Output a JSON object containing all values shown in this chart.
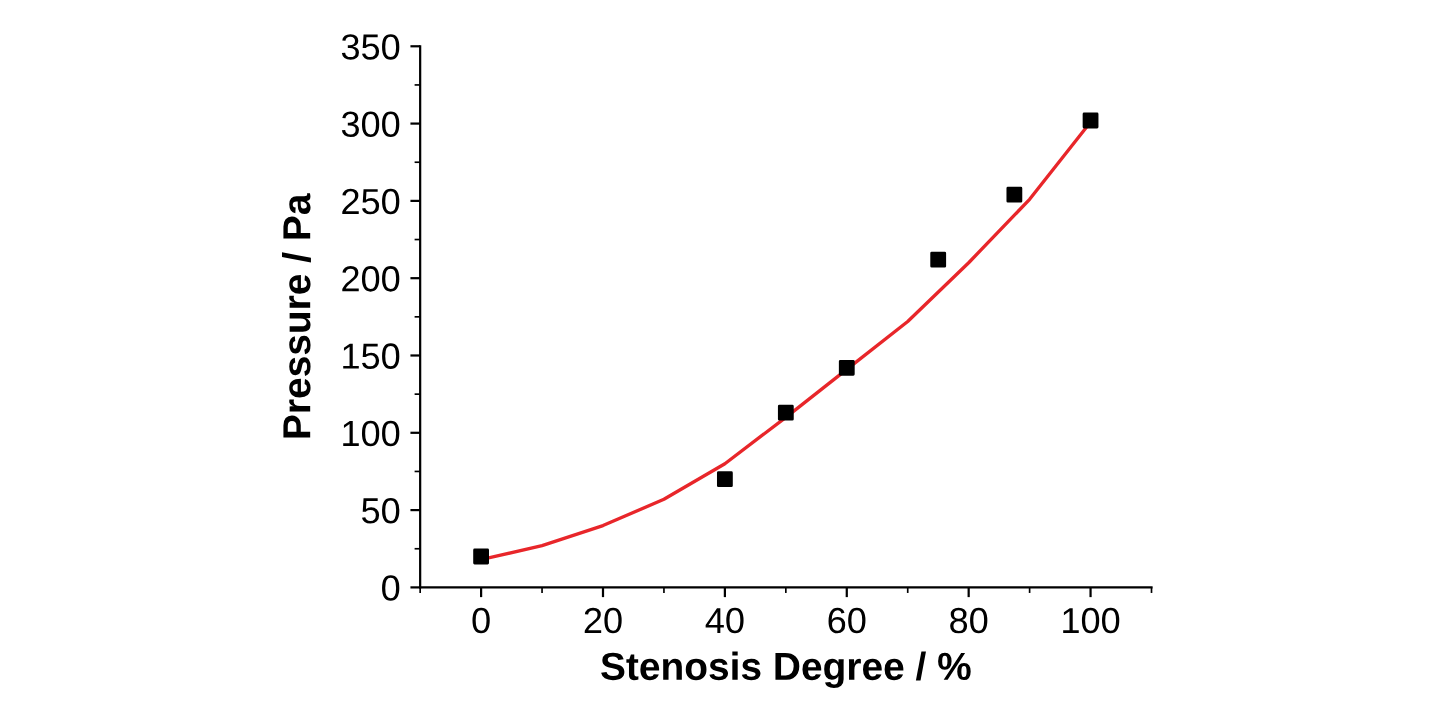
{
  "chart_data": {
    "type": "scatter",
    "xlabel": "Stenosis Degree / %",
    "ylabel": "Pressure / Pa",
    "xlim": [
      -10,
      110
    ],
    "xticks": [
      0,
      20,
      40,
      60,
      80,
      100
    ],
    "ylim": [
      0,
      350
    ],
    "yticks": [
      0,
      50,
      100,
      150,
      200,
      250,
      300,
      350
    ],
    "grid": false,
    "legend": false,
    "series": [
      {
        "color": "#000000",
        "marker": "square",
        "x": [
          0,
          40,
          50,
          60,
          75,
          87.5,
          100
        ],
        "values": [
          20,
          70,
          113,
          142,
          212,
          254,
          302
        ]
      },
      {
        "type": "line",
        "color": "#e8262a",
        "marker": "none",
        "line_style": "solid",
        "x": [
          0,
          10,
          20,
          30,
          40,
          50,
          60,
          70,
          80,
          90,
          100
        ],
        "values": [
          18,
          27,
          40,
          57,
          80,
          110,
          141,
          172,
          210,
          251,
          301
        ]
      }
    ]
  }
}
